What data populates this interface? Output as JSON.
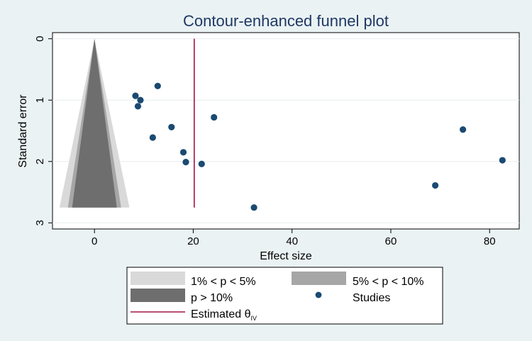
{
  "chart_data": {
    "type": "scatter",
    "title": "Contour-enhanced funnel plot",
    "xlabel": "Effect size",
    "ylabel": "Standard error",
    "xlim": [
      -8.5,
      86
    ],
    "ylim": [
      3.1,
      -0.1
    ],
    "y_reversed": true,
    "grid": true,
    "x_ticks": [
      0,
      20,
      40,
      60,
      80
    ],
    "y_ticks": [
      0,
      1,
      2,
      3
    ],
    "contours": {
      "center": 0,
      "se_max": 2.75,
      "regions": [
        {
          "label": "1% < p < 5%",
          "z_inner": 1.96,
          "z_outer": 2.576,
          "color": "#d9d9d9"
        },
        {
          "label": "5% < p < 10%",
          "z_inner": 1.645,
          "z_outer": 1.96,
          "color": "#a6a6a6"
        },
        {
          "label": "p > 10%",
          "z_inner": 0,
          "z_outer": 1.645,
          "color": "#6e6e6e"
        }
      ]
    },
    "estimate": {
      "label": "Estimated θ",
      "subscript": "IV",
      "value": 20.2,
      "se_max": 2.75,
      "color": "#a31445"
    },
    "series": [
      {
        "name": "Studies",
        "color": "#1a4a72",
        "points": [
          {
            "x": 8.3,
            "y": 0.93
          },
          {
            "x": 8.8,
            "y": 1.1
          },
          {
            "x": 9.3,
            "y": 1.0
          },
          {
            "x": 12.8,
            "y": 0.77
          },
          {
            "x": 11.8,
            "y": 1.61
          },
          {
            "x": 15.6,
            "y": 1.44
          },
          {
            "x": 18.0,
            "y": 1.85
          },
          {
            "x": 18.5,
            "y": 2.01
          },
          {
            "x": 21.7,
            "y": 2.04
          },
          {
            "x": 24.2,
            "y": 1.28
          },
          {
            "x": 32.3,
            "y": 2.75
          },
          {
            "x": 69.0,
            "y": 2.39
          },
          {
            "x": 74.6,
            "y": 1.48
          },
          {
            "x": 82.6,
            "y": 1.98
          }
        ]
      }
    ],
    "legend": {
      "placement": "bottom",
      "entries": [
        {
          "label": "1% < p < 5%",
          "kind": "box",
          "color": "#d9d9d9"
        },
        {
          "label": "5% < p < 10%",
          "kind": "box",
          "color": "#a6a6a6"
        },
        {
          "label": "p > 10%",
          "kind": "box",
          "color": "#6e6e6e"
        },
        {
          "label": "Studies",
          "kind": "marker",
          "color": "#1a4a72"
        },
        {
          "label": "Estimated θ",
          "subscript": "IV",
          "kind": "line",
          "color": "#a31445"
        }
      ]
    }
  }
}
